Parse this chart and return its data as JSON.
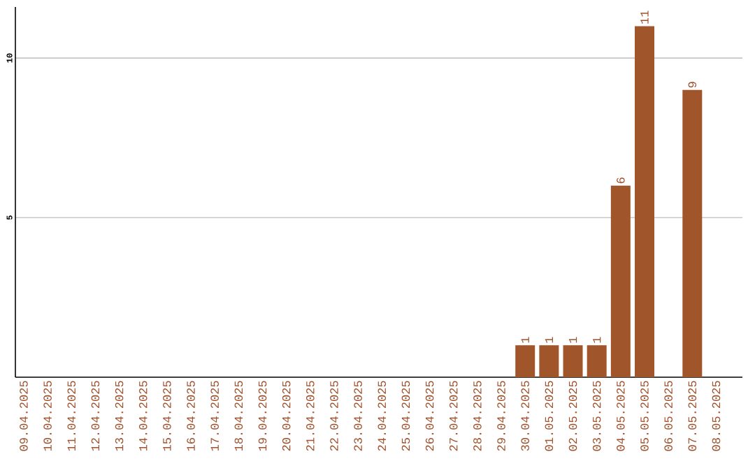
{
  "chart_data": {
    "type": "bar",
    "categories": [
      "09.04.2025",
      "10.04.2025",
      "11.04.2025",
      "12.04.2025",
      "13.04.2025",
      "14.04.2025",
      "15.04.2025",
      "16.04.2025",
      "17.04.2025",
      "18.04.2025",
      "19.04.2025",
      "20.04.2025",
      "21.04.2025",
      "22.04.2025",
      "23.04.2025",
      "24.04.2025",
      "25.04.2025",
      "26.04.2025",
      "27.04.2025",
      "28.04.2025",
      "29.04.2025",
      "30.04.2025",
      "01.05.2025",
      "02.05.2025",
      "03.05.2025",
      "04.05.2025",
      "05.05.2025",
      "06.05.2025",
      "07.05.2025",
      "08.05.2025"
    ],
    "values": [
      0,
      0,
      0,
      0,
      0,
      0,
      0,
      0,
      0,
      0,
      0,
      0,
      0,
      0,
      0,
      0,
      0,
      0,
      0,
      0,
      0,
      1,
      1,
      1,
      1,
      6,
      11,
      0,
      9,
      0
    ],
    "value_labels": [
      null,
      null,
      null,
      null,
      null,
      null,
      null,
      null,
      null,
      null,
      null,
      null,
      null,
      null,
      null,
      null,
      null,
      null,
      null,
      null,
      null,
      "1",
      "1",
      "1",
      "1",
      "6",
      "11",
      null,
      "9",
      null
    ],
    "color": "#a0562a",
    "ylim": [
      0,
      11.6
    ],
    "yticks": [
      5,
      10
    ],
    "grid": "y"
  }
}
